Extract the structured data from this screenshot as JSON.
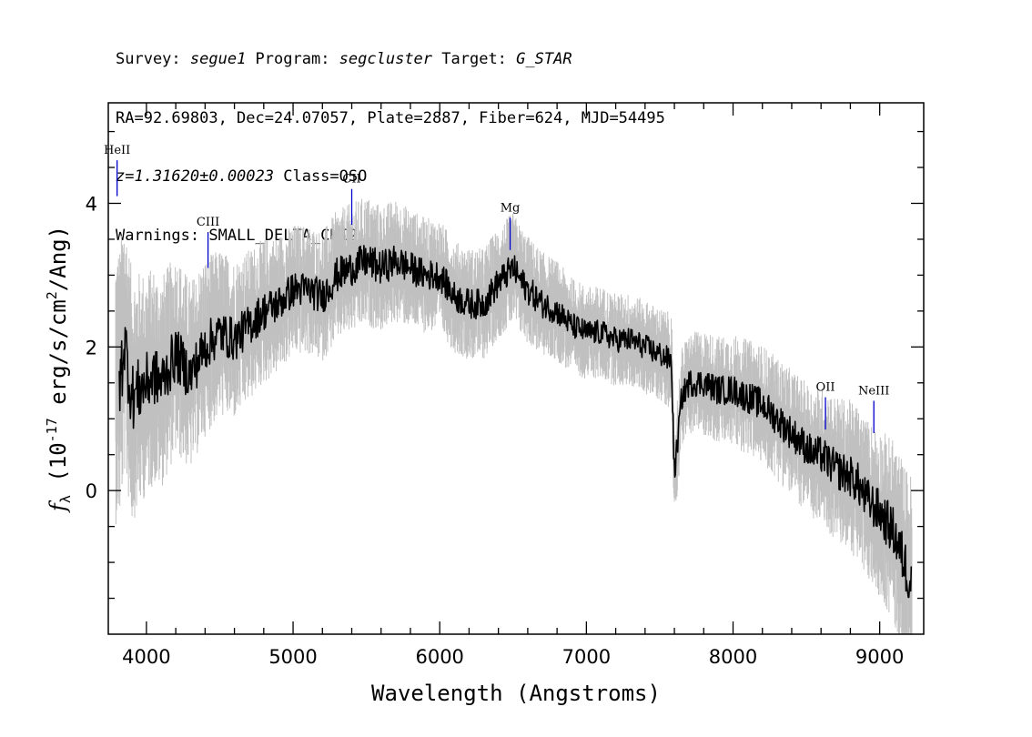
{
  "header": {
    "line1": {
      "survey_label": "Survey: ",
      "survey": "segue1",
      "program_label": " Program: ",
      "program": "segcluster",
      "target_label": " Target: ",
      "target": "G_STAR"
    },
    "line2": "RA=92.69803, Dec=24.07057, Plate=2887, Fiber=624, MJD=54495",
    "line3": {
      "redshift": "z=1.31620±0.00023",
      "class": " Class=QSO"
    },
    "line4": "Warnings: SMALL_DELTA_CHI2"
  },
  "chart_data": {
    "type": "line",
    "xlabel": "Wavelength (Angstroms)",
    "ylabel": "f_λ (10^-17 erg/s/cm^2/Ang)",
    "xlim": [
      3740,
      9300
    ],
    "ylim": [
      -2.0,
      5.4
    ],
    "x_ticks": [
      "4000",
      "5000",
      "6000",
      "7000",
      "8000",
      "9000"
    ],
    "y_ticks": [
      "0",
      "2",
      "4"
    ],
    "colors": {
      "flux": "#000000",
      "error": "#c0c0c0",
      "lines": "#0000cc"
    },
    "series": [
      {
        "role": "flux",
        "x": [
          3820,
          3850,
          3900,
          3950,
          4000,
          4050,
          4100,
          4150,
          4200,
          4300,
          4400,
          4500,
          4600,
          4700,
          4800,
          4900,
          5000,
          5100,
          5200,
          5300,
          5400,
          5500,
          5600,
          5700,
          5800,
          5900,
          6000,
          6100,
          6200,
          6300,
          6400,
          6500,
          6560,
          6600,
          6700,
          6800,
          6900,
          7000,
          7100,
          7200,
          7300,
          7400,
          7500,
          7580,
          7600,
          7650,
          7700,
          7800,
          7900,
          8000,
          8100,
          8200,
          8300,
          8400,
          8500,
          8550,
          8600,
          8700,
          8800,
          8850,
          8900,
          9000,
          9100,
          9200
        ],
        "y": [
          1.5,
          2.1,
          1.3,
          1.4,
          1.5,
          1.6,
          1.5,
          1.7,
          1.9,
          1.6,
          2.0,
          2.2,
          2.1,
          2.3,
          2.5,
          2.6,
          2.8,
          2.8,
          2.7,
          3.0,
          3.1,
          3.2,
          3.1,
          3.2,
          3.1,
          3.0,
          3.0,
          2.7,
          2.6,
          2.6,
          2.9,
          3.1,
          2.9,
          2.8,
          2.6,
          2.5,
          2.3,
          2.2,
          2.2,
          2.1,
          2.1,
          2.0,
          1.9,
          1.8,
          0.2,
          1.3,
          1.5,
          1.5,
          1.4,
          1.4,
          1.3,
          1.2,
          1.0,
          0.8,
          0.6,
          0.5,
          0.5,
          0.3,
          0.2,
          0.1,
          -0.1,
          -0.3,
          -0.6,
          -1.2
        ]
      },
      {
        "role": "error",
        "x": [
          3740,
          4000,
          4500,
          5000,
          5500,
          6000,
          6500,
          7000,
          7500,
          8000,
          8500,
          9000,
          9300
        ],
        "y": [
          0.8,
          0.6,
          0.45,
          0.35,
          0.35,
          0.3,
          0.3,
          0.25,
          0.25,
          0.3,
          0.35,
          0.45,
          0.6
        ]
      }
    ],
    "emission_lines": [
      {
        "name": "HeII",
        "x": 3800,
        "y_top": 4.6,
        "y_bottom": 4.1
      },
      {
        "name": "CIII",
        "x": 4420,
        "y_top": 3.6,
        "y_bottom": 3.1
      },
      {
        "name": "CII",
        "x": 5400,
        "y_top": 4.2,
        "y_bottom": 3.7
      },
      {
        "name": "Mg",
        "x": 6480,
        "y_top": 3.8,
        "y_bottom": 3.35
      },
      {
        "name": "OII",
        "x": 8630,
        "y_top": 1.3,
        "y_bottom": 0.85
      },
      {
        "name": "NeIII",
        "x": 8960,
        "y_top": 1.25,
        "y_bottom": 0.8
      }
    ]
  }
}
